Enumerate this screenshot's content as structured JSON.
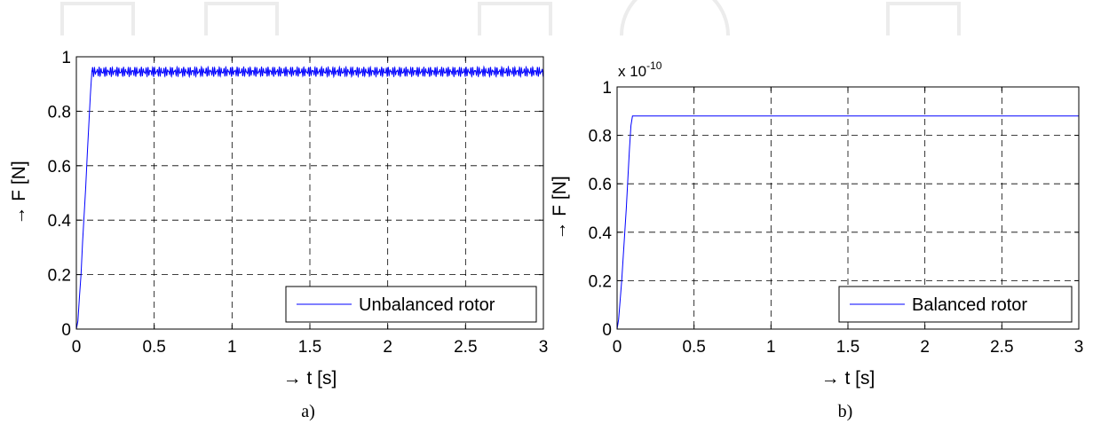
{
  "chart_data": [
    {
      "type": "line",
      "caption": "a)",
      "xlabel": "→ t [s]",
      "ylabel": "→ F [N]",
      "xlim": [
        0,
        3
      ],
      "ylim": [
        0,
        1
      ],
      "xticks": [
        0,
        0.5,
        1,
        1.5,
        2,
        2.5,
        3
      ],
      "xtick_labels": [
        "0",
        "0.5",
        "1",
        "1.5",
        "2",
        "2.5",
        "3"
      ],
      "yticks": [
        0,
        0.2,
        0.4,
        0.6,
        0.8,
        1
      ],
      "ytick_labels": [
        "0",
        "0.2",
        "0.4",
        "0.6",
        "0.8",
        "1"
      ],
      "y_exponent_label": "",
      "grid": true,
      "legend_position": "bottom-right",
      "series": [
        {
          "name": "Unbalanced rotor",
          "color": "#0000ff",
          "x": [
            0,
            0.01,
            0.02,
            0.03,
            0.04,
            0.05,
            0.06,
            0.07,
            0.08,
            0.09,
            0.1
          ],
          "y": [
            0,
            0.03,
            0.12,
            0.2,
            0.32,
            0.42,
            0.52,
            0.64,
            0.75,
            0.86,
            0.95
          ],
          "steady_state": {
            "from": 0.1,
            "to": 3.0,
            "mean": 0.945,
            "amplitude": 0.018,
            "cycles_per_second": 70
          }
        }
      ]
    },
    {
      "type": "line",
      "caption": "b)",
      "xlabel": "→ t [s]",
      "ylabel": "→ F [N]",
      "xlim": [
        0,
        3
      ],
      "ylim": [
        0,
        1
      ],
      "xticks": [
        0,
        0.5,
        1,
        1.5,
        2,
        2.5,
        3
      ],
      "xtick_labels": [
        "0",
        "0.5",
        "1",
        "1.5",
        "2",
        "2.5",
        "3"
      ],
      "yticks": [
        0,
        0.2,
        0.4,
        0.6,
        0.8,
        1
      ],
      "ytick_labels": [
        "0",
        "0.2",
        "0.4",
        "0.6",
        "0.8",
        "1"
      ],
      "y_exponent_label": "x 10",
      "y_exponent_power": "-10",
      "grid": true,
      "legend_position": "bottom-right",
      "series": [
        {
          "name": "Balanced rotor",
          "color": "#0000ff",
          "x": [
            0,
            0.01,
            0.02,
            0.03,
            0.04,
            0.05,
            0.06,
            0.07,
            0.08,
            0.09,
            0.1,
            3.0
          ],
          "y": [
            0,
            0.04,
            0.12,
            0.2,
            0.3,
            0.4,
            0.5,
            0.62,
            0.74,
            0.84,
            0.88,
            0.88
          ],
          "steady_state": {
            "from": 0.1,
            "to": 3.0,
            "mean": 0.88,
            "amplitude": 0,
            "cycles_per_second": 0
          }
        }
      ]
    }
  ]
}
